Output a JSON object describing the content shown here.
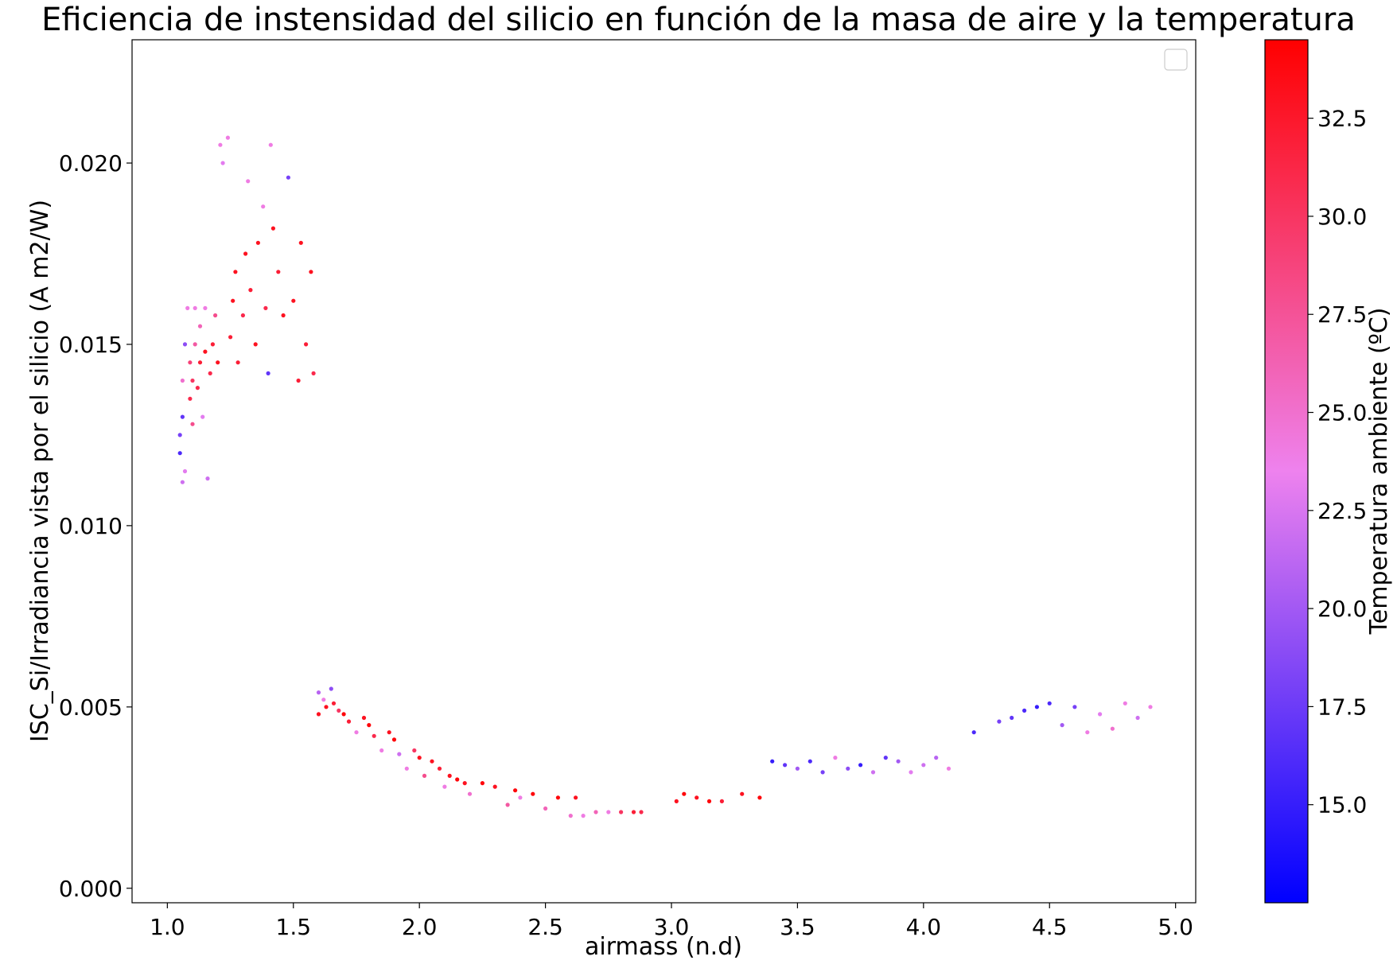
{
  "chart_data": {
    "type": "scatter",
    "title": "Eficiencia de instensidad del silicio en función de la masa de aire y la temperatura",
    "xlabel": "airmass (n.d)",
    "ylabel": "ISC_Si/Irradiancia vista por el silicio (A m2/W)",
    "xlim": [
      0.86,
      5.08
    ],
    "ylim": [
      -0.0004,
      0.0234
    ],
    "x_ticks": [
      1.0,
      1.5,
      2.0,
      2.5,
      3.0,
      3.5,
      4.0,
      4.5,
      5.0
    ],
    "x_tick_labels": [
      "1.0",
      "1.5",
      "2.0",
      "2.5",
      "3.0",
      "3.5",
      "4.0",
      "4.5",
      "5.0"
    ],
    "y_ticks": [
      0.0,
      0.005,
      0.01,
      0.015,
      0.02
    ],
    "y_tick_labels": [
      "0.000",
      "0.005",
      "0.010",
      "0.015",
      "0.020"
    ],
    "legend": {
      "placement": "top-right",
      "entries": []
    },
    "grid": false,
    "colorbar": {
      "label": "Temperatura ambiente (ºC)",
      "range": [
        12.5,
        34.5
      ],
      "ticks": [
        15.0,
        17.5,
        20.0,
        22.5,
        25.0,
        27.5,
        30.0,
        32.5
      ],
      "tick_labels": [
        "15.0",
        "17.5",
        "20.0",
        "22.5",
        "25.0",
        "27.5",
        "30.0",
        "32.5"
      ],
      "colormap": [
        "#0000ff",
        "#ee82ee",
        "#ff0000"
      ]
    },
    "series": [
      {
        "points": [
          [
            1.05,
            0.012,
            16
          ],
          [
            1.05,
            0.0125,
            18
          ],
          [
            1.06,
            0.013,
            17
          ],
          [
            1.06,
            0.014,
            25
          ],
          [
            1.07,
            0.015,
            19
          ],
          [
            1.07,
            0.0115,
            23
          ],
          [
            1.08,
            0.016,
            24
          ],
          [
            1.06,
            0.0112,
            22
          ],
          [
            1.09,
            0.0145,
            29
          ],
          [
            1.09,
            0.0135,
            31
          ],
          [
            1.1,
            0.014,
            30
          ],
          [
            1.1,
            0.0128,
            28
          ],
          [
            1.11,
            0.015,
            27
          ],
          [
            1.11,
            0.016,
            24
          ],
          [
            1.12,
            0.0138,
            31
          ],
          [
            1.13,
            0.0145,
            32
          ],
          [
            1.13,
            0.0155,
            26
          ],
          [
            1.14,
            0.013,
            23
          ],
          [
            1.15,
            0.0148,
            33
          ],
          [
            1.15,
            0.016,
            24
          ],
          [
            1.16,
            0.0113,
            22
          ],
          [
            1.17,
            0.0142,
            31
          ],
          [
            1.18,
            0.015,
            32
          ],
          [
            1.19,
            0.0158,
            28
          ],
          [
            1.2,
            0.0145,
            33
          ],
          [
            1.21,
            0.0205,
            24
          ],
          [
            1.22,
            0.02,
            23
          ],
          [
            1.24,
            0.0207,
            24
          ],
          [
            1.25,
            0.0152,
            32
          ],
          [
            1.26,
            0.0162,
            33
          ],
          [
            1.27,
            0.017,
            33
          ],
          [
            1.28,
            0.0145,
            32
          ],
          [
            1.3,
            0.0158,
            31
          ],
          [
            1.31,
            0.0175,
            33
          ],
          [
            1.32,
            0.0195,
            24
          ],
          [
            1.33,
            0.0165,
            32
          ],
          [
            1.35,
            0.015,
            33
          ],
          [
            1.36,
            0.0178,
            33
          ],
          [
            1.38,
            0.0188,
            24
          ],
          [
            1.39,
            0.016,
            31
          ],
          [
            1.4,
            0.0142,
            17
          ],
          [
            1.41,
            0.0205,
            24
          ],
          [
            1.42,
            0.0182,
            33
          ],
          [
            1.44,
            0.017,
            32
          ],
          [
            1.46,
            0.0158,
            33
          ],
          [
            1.48,
            0.0196,
            18
          ],
          [
            1.5,
            0.0162,
            33
          ],
          [
            1.52,
            0.014,
            32
          ],
          [
            1.53,
            0.0178,
            33
          ],
          [
            1.55,
            0.015,
            32
          ],
          [
            1.57,
            0.017,
            33
          ],
          [
            1.58,
            0.0142,
            31
          ],
          [
            1.6,
            0.0054,
            21
          ],
          [
            1.6,
            0.0048,
            33
          ],
          [
            1.62,
            0.0052,
            24
          ],
          [
            1.63,
            0.005,
            33
          ],
          [
            1.65,
            0.0055,
            19
          ],
          [
            1.66,
            0.0051,
            32
          ],
          [
            1.68,
            0.0049,
            30
          ],
          [
            1.7,
            0.0048,
            34
          ],
          [
            1.72,
            0.0046,
            32
          ],
          [
            1.75,
            0.0043,
            24
          ],
          [
            1.78,
            0.0047,
            33
          ],
          [
            1.8,
            0.0045,
            34
          ],
          [
            1.82,
            0.0042,
            31
          ],
          [
            1.85,
            0.0038,
            24
          ],
          [
            1.88,
            0.0043,
            33
          ],
          [
            1.9,
            0.0041,
            34
          ],
          [
            1.92,
            0.0037,
            22
          ],
          [
            1.95,
            0.0033,
            24
          ],
          [
            1.98,
            0.0038,
            30
          ],
          [
            2.0,
            0.0036,
            33
          ],
          [
            2.02,
            0.0031,
            28
          ],
          [
            2.05,
            0.0035,
            33
          ],
          [
            2.08,
            0.0033,
            32
          ],
          [
            2.1,
            0.0028,
            24
          ],
          [
            2.12,
            0.0031,
            33
          ],
          [
            2.15,
            0.003,
            34
          ],
          [
            2.18,
            0.0029,
            33
          ],
          [
            2.2,
            0.0026,
            25
          ],
          [
            2.25,
            0.0029,
            34
          ],
          [
            2.3,
            0.0028,
            33
          ],
          [
            2.35,
            0.0023,
            27
          ],
          [
            2.38,
            0.0027,
            34
          ],
          [
            2.4,
            0.0025,
            24
          ],
          [
            2.45,
            0.0026,
            34
          ],
          [
            2.5,
            0.0022,
            26
          ],
          [
            2.55,
            0.0025,
            34
          ],
          [
            2.6,
            0.002,
            25
          ],
          [
            2.62,
            0.0025,
            33
          ],
          [
            2.65,
            0.002,
            24
          ],
          [
            2.7,
            0.0021,
            26
          ],
          [
            2.75,
            0.0021,
            24
          ],
          [
            2.8,
            0.0021,
            30
          ],
          [
            2.85,
            0.0021,
            32
          ],
          [
            2.88,
            0.0021,
            31
          ],
          [
            3.02,
            0.0024,
            33
          ],
          [
            3.05,
            0.0026,
            34
          ],
          [
            3.1,
            0.0025,
            33
          ],
          [
            3.15,
            0.0024,
            34
          ],
          [
            3.2,
            0.0024,
            32
          ],
          [
            3.28,
            0.0026,
            33
          ],
          [
            3.35,
            0.0025,
            34
          ],
          [
            3.4,
            0.0035,
            15
          ],
          [
            3.45,
            0.0034,
            17
          ],
          [
            3.5,
            0.0033,
            20
          ],
          [
            3.55,
            0.0035,
            16
          ],
          [
            3.6,
            0.0032,
            18
          ],
          [
            3.65,
            0.0036,
            24
          ],
          [
            3.7,
            0.0033,
            19
          ],
          [
            3.75,
            0.0034,
            15
          ],
          [
            3.8,
            0.0032,
            22
          ],
          [
            3.85,
            0.0036,
            17
          ],
          [
            3.9,
            0.0035,
            20
          ],
          [
            3.95,
            0.0032,
            23
          ],
          [
            4.0,
            0.0034,
            22
          ],
          [
            4.05,
            0.0036,
            21
          ],
          [
            4.1,
            0.0033,
            24
          ],
          [
            4.2,
            0.0043,
            16
          ],
          [
            4.3,
            0.0046,
            18
          ],
          [
            4.35,
            0.0047,
            17
          ],
          [
            4.4,
            0.0049,
            16
          ],
          [
            4.45,
            0.005,
            15
          ],
          [
            4.5,
            0.0051,
            16
          ],
          [
            4.55,
            0.0045,
            20
          ],
          [
            4.6,
            0.005,
            18
          ],
          [
            4.65,
            0.0043,
            24
          ],
          [
            4.7,
            0.0048,
            23
          ],
          [
            4.75,
            0.0044,
            25
          ],
          [
            4.8,
            0.0051,
            24
          ],
          [
            4.85,
            0.0047,
            22
          ],
          [
            4.9,
            0.005,
            24
          ]
        ]
      }
    ]
  }
}
